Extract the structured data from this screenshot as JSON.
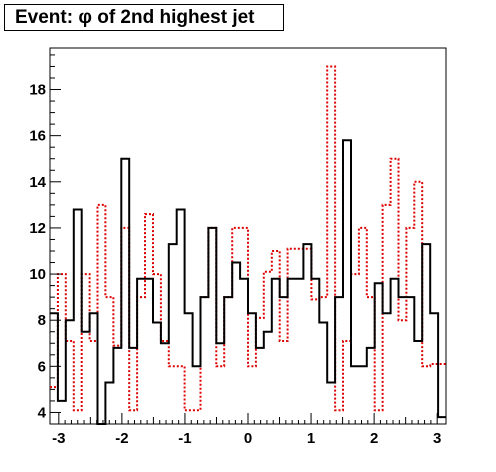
{
  "chart_data": {
    "type": "histogram",
    "title": "Event: φ of 2nd highest jet",
    "xlabel": "",
    "ylabel": "",
    "xlim": [
      -3.14,
      3.14
    ],
    "ylim": [
      3.5,
      19.8
    ],
    "x_ticks": [
      -3,
      -2,
      -1,
      0,
      1,
      2,
      3
    ],
    "y_ticks": [
      4,
      6,
      8,
      10,
      12,
      14,
      16,
      18
    ],
    "grid": false,
    "legend": "none",
    "bin_count": 50,
    "series": [
      {
        "color": "#000000",
        "style": "solid",
        "values": [
          8.3,
          4.5,
          8.0,
          12.8,
          7.5,
          8.3,
          3.4,
          5.3,
          6.8,
          15.0,
          6.8,
          9.8,
          9.8,
          7.9,
          7.0,
          11.3,
          12.8,
          8.3,
          6.0,
          9.0,
          12.0,
          7.0,
          9.0,
          10.5,
          9.8,
          8.3,
          6.8,
          7.5,
          9.8,
          9.0,
          9.8,
          9.8,
          11.3,
          9.8,
          7.9,
          5.3,
          9.0,
          15.8,
          6.0,
          6.0,
          6.8,
          9.6,
          8.3,
          9.8,
          9.0,
          9.0,
          7.1,
          11.3,
          8.3,
          3.8
        ]
      },
      {
        "color": "#dd0000",
        "style": "dotted",
        "values": [
          5.1,
          10.0,
          7.1,
          4.1,
          10.0,
          7.1,
          13.0,
          9.0,
          6.9,
          12.0,
          4.1,
          9.0,
          12.6,
          10.0,
          7.1,
          6.0,
          6.0,
          4.1,
          4.1,
          9.0,
          12.0,
          6.0,
          9.0,
          12.0,
          12.0,
          6.0,
          8.1,
          10.1,
          11.0,
          7.1,
          11.1,
          11.1,
          11.1,
          8.9,
          9.0,
          19.0,
          4.1,
          7.1,
          10.0,
          12.0,
          9.0,
          4.1,
          13.0,
          15.0,
          8.0,
          12.0,
          14.0,
          6.0,
          6.1,
          6.1
        ]
      }
    ]
  }
}
